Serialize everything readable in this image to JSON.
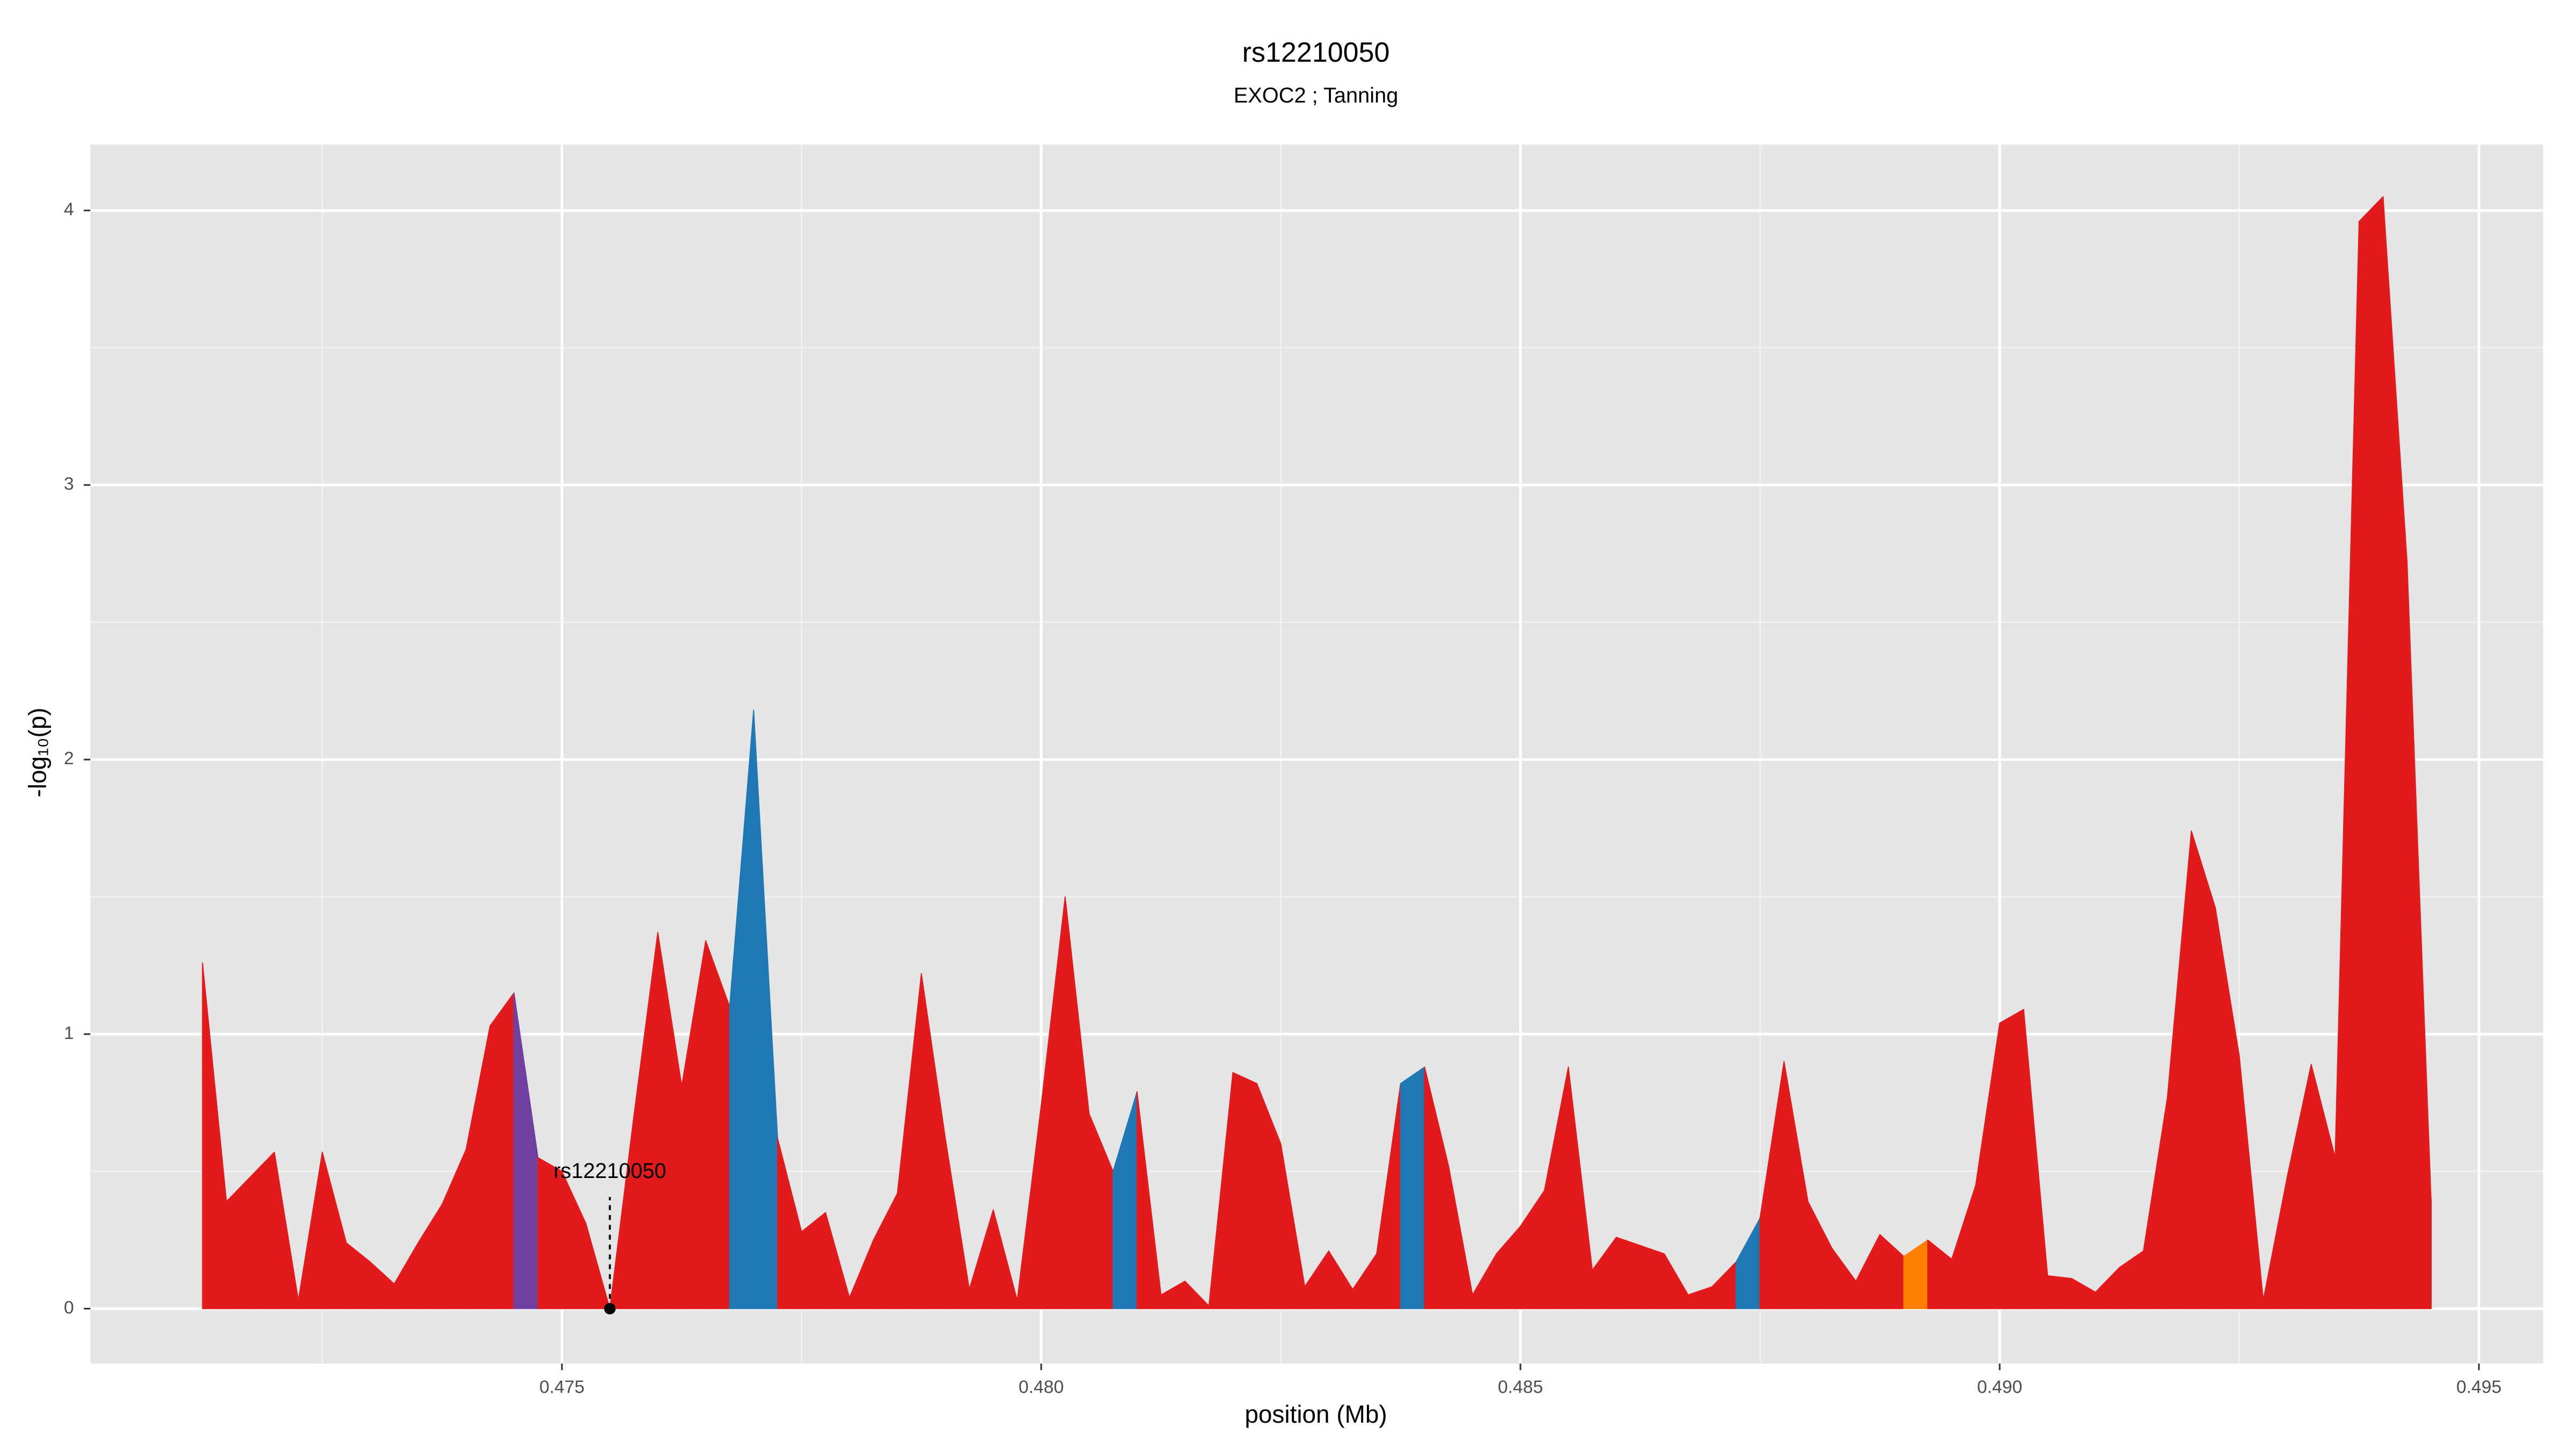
{
  "chart_data": {
    "type": "area",
    "title": "rs12210050",
    "subtitle": "EXOC2 ; Tanning",
    "x_label": "position (Mb)",
    "y_label": "-log₁₀(p)",
    "x": [
      0.47125,
      0.4715,
      0.47175,
      0.472,
      0.47225,
      0.4725,
      0.47275,
      0.473,
      0.47325,
      0.4735,
      0.47375,
      0.474,
      0.47425,
      0.4745,
      0.47475,
      0.475,
      0.47525,
      0.4755,
      0.47575,
      0.476,
      0.47625,
      0.4765,
      0.47675,
      0.477,
      0.47725,
      0.4775,
      0.47775,
      0.478,
      0.47825,
      0.4785,
      0.47875,
      0.479,
      0.47925,
      0.4795,
      0.47975,
      0.48,
      0.48025,
      0.4805,
      0.48075,
      0.481,
      0.48125,
      0.4815,
      0.48175,
      0.482,
      0.48225,
      0.4825,
      0.48275,
      0.483,
      0.48325,
      0.4835,
      0.48375,
      0.484,
      0.48425,
      0.4845,
      0.48475,
      0.485,
      0.48525,
      0.4855,
      0.48575,
      0.486,
      0.48625,
      0.4865,
      0.48675,
      0.487,
      0.48725,
      0.4875,
      0.48775,
      0.488,
      0.48825,
      0.4885,
      0.48875,
      0.489,
      0.48925,
      0.4895,
      0.48975,
      0.49,
      0.49025,
      0.4905,
      0.49075,
      0.491,
      0.49125,
      0.4915,
      0.49175,
      0.492,
      0.49225,
      0.4925,
      0.49275,
      0.493,
      0.49325,
      0.4935,
      0.49375,
      0.494,
      0.49425,
      0.4945
    ],
    "values": [
      1.26,
      0.39,
      0.48,
      0.57,
      0.03,
      0.57,
      0.24,
      0.17,
      0.09,
      0.24,
      0.38,
      0.58,
      1.03,
      1.15,
      0.55,
      0.5,
      0.31,
      0.0,
      0.7,
      1.37,
      0.81,
      1.34,
      1.1,
      2.18,
      0.62,
      0.28,
      0.35,
      0.04,
      0.25,
      0.42,
      1.22,
      0.62,
      0.07,
      0.36,
      0.03,
      0.74,
      1.5,
      0.71,
      0.5,
      0.79,
      0.05,
      0.1,
      0.01,
      0.86,
      0.82,
      0.6,
      0.08,
      0.21,
      0.07,
      0.2,
      0.82,
      0.88,
      0.52,
      0.05,
      0.2,
      0.3,
      0.43,
      0.88,
      0.14,
      0.26,
      0.23,
      0.2,
      0.05,
      0.08,
      0.17,
      0.33,
      0.9,
      0.39,
      0.22,
      0.1,
      0.27,
      0.19,
      0.25,
      0.18,
      0.45,
      1.04,
      1.09,
      0.12,
      0.11,
      0.06,
      0.15,
      0.21,
      0.77,
      1.74,
      1.46,
      0.92,
      0.03,
      0.48,
      0.89,
      0.55,
      3.96,
      4.05,
      2.72,
      0.4
    ],
    "colors": [
      "#e31a1c",
      "#e31a1c",
      "#e31a1c",
      "#e31a1c",
      "#e31a1c",
      "#e31a1c",
      "#e31a1c",
      "#e31a1c",
      "#e31a1c",
      "#e31a1c",
      "#e31a1c",
      "#e31a1c",
      "#e31a1c",
      "#7040a0",
      "#e31a1c",
      "#e31a1c",
      "#e31a1c",
      "#e31a1c",
      "#e31a1c",
      "#e31a1c",
      "#e31a1c",
      "#e31a1c",
      "#1f78b4",
      "#1f78b4",
      "#e31a1c",
      "#e31a1c",
      "#e31a1c",
      "#e31a1c",
      "#e31a1c",
      "#e31a1c",
      "#e31a1c",
      "#e31a1c",
      "#e31a1c",
      "#e31a1c",
      "#e31a1c",
      "#e31a1c",
      "#e31a1c",
      "#e31a1c",
      "#1f78b4",
      "#e31a1c",
      "#e31a1c",
      "#e31a1c",
      "#e31a1c",
      "#e31a1c",
      "#e31a1c",
      "#e31a1c",
      "#e31a1c",
      "#e31a1c",
      "#e31a1c",
      "#e31a1c",
      "#1f78b4",
      "#e31a1c",
      "#e31a1c",
      "#e31a1c",
      "#e31a1c",
      "#e31a1c",
      "#e31a1c",
      "#e31a1c",
      "#e31a1c",
      "#e31a1c",
      "#e31a1c",
      "#e31a1c",
      "#e31a1c",
      "#e31a1c",
      "#1f78b4",
      "#e31a1c",
      "#e31a1c",
      "#e31a1c",
      "#e31a1c",
      "#e31a1c",
      "#e31a1c",
      "#ff7f00",
      "#e31a1c",
      "#e31a1c",
      "#e31a1c",
      "#e31a1c",
      "#e31a1c",
      "#e31a1c",
      "#e31a1c",
      "#e31a1c",
      "#e31a1c",
      "#e31a1c",
      "#e31a1c",
      "#e31a1c",
      "#e31a1c",
      "#e31a1c",
      "#e31a1c",
      "#e31a1c",
      "#e31a1c",
      "#e31a1c",
      "#e31a1c",
      "#e31a1c",
      "#e31a1c",
      "#e31a1c"
    ],
    "annotation": {
      "text": "rs12210050",
      "x": 0.4755,
      "y": 0
    },
    "xlim": [
      0.47008,
      0.49567
    ],
    "ylim": [
      -0.2,
      4.24
    ],
    "xticks": [
      0.475,
      {
        "value": 0.48,
        "label": "0.480"
      },
      0.485,
      {
        "value": 0.49,
        "label": "0.490"
      },
      0.495
    ],
    "yticks": [
      0,
      1,
      2,
      3,
      4
    ],
    "x_minor_ticks": [
      0.4725,
      0.4775,
      0.4825,
      0.4875,
      0.4925
    ],
    "y_minor_ticks": [
      0.5,
      1.5,
      2.5,
      3.5
    ],
    "grid": true
  }
}
